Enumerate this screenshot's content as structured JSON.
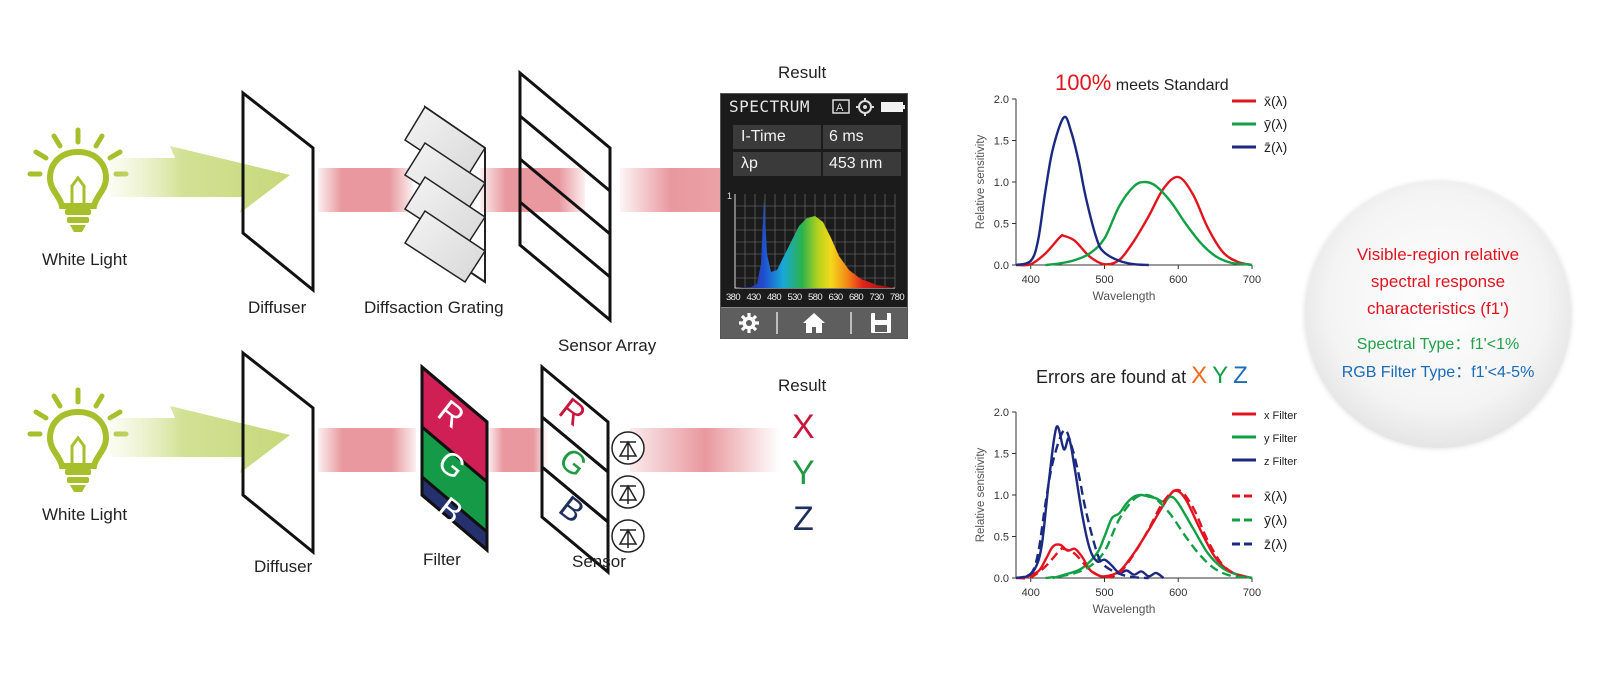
{
  "labels": {
    "white_light_top": "White Light",
    "white_light_bottom": "White Light",
    "diffuser_top": "Diffuser",
    "diffraction_grating": "Diffsaction Grating",
    "sensor_array": "Sensor Array",
    "diffuser_bottom": "Diffuser",
    "filter": "Filter",
    "sensor": "Sensor",
    "result_top": "Result",
    "result_bottom": "Result"
  },
  "filter_letters": [
    "R",
    "G",
    "B"
  ],
  "sensor_letters": [
    "R",
    "G",
    "B"
  ],
  "result_xyz": [
    "X",
    "Y",
    "Z"
  ],
  "device": {
    "title": "SPECTRUM",
    "itime_label": "I-Time",
    "itime_value": "6 ms",
    "lp_label": "λp",
    "lp_value": "453 nm",
    "spectrum_axis_top": "1",
    "spectrum_ticks": [
      "380",
      "430",
      "480",
      "530",
      "580",
      "630",
      "680",
      "730",
      "780"
    ],
    "icons": [
      "gear-icon",
      "home-icon",
      "save-icon"
    ]
  },
  "top_chart": {
    "title_pct": "100%",
    "title_rest": "meets Standard"
  },
  "bottom_chart": {
    "title_prefix": "Errors are found at",
    "title_x": "X",
    "title_y": "Y",
    "title_z": "Z"
  },
  "circle": {
    "line1": "Visible-region relative",
    "line2": "spectral response",
    "line3": "characteristics (f1')",
    "spectral": "Spectral Type：f1'<1%",
    "rgb": "RGB Filter Type：f1'<4-5%"
  },
  "colors": {
    "red": "#e1141f",
    "green": "#12a045",
    "blue": "#1b2a80",
    "result_x": "#c8163f",
    "result_y": "#229944",
    "result_z": "#1f2f5e",
    "bulb": "#a8bf2c",
    "beam": "#e8989e",
    "err_x": "#f06a1e",
    "spectral_text": "#21a24b",
    "rgb_text": "#1a6bb8"
  },
  "chart_data": [
    {
      "type": "line",
      "title": "100% meets Standard",
      "xlabel": "Wavelength",
      "ylabel": "Relative sensitivity",
      "xlim": [
        380,
        700
      ],
      "ylim": [
        0,
        2.0
      ],
      "xticks": [
        400,
        500,
        600,
        700
      ],
      "yticks": [
        0.0,
        0.5,
        1.0,
        1.5,
        2.0
      ],
      "legend": "top-right",
      "series": [
        {
          "name": "x̄(λ)",
          "style": "solid",
          "color": "#e1141f",
          "x": [
            380,
            400,
            420,
            440,
            445,
            460,
            480,
            500,
            520,
            540,
            560,
            580,
            600,
            620,
            640,
            660,
            680,
            700
          ],
          "y": [
            0.0,
            0.01,
            0.14,
            0.34,
            0.35,
            0.29,
            0.1,
            0.01,
            0.06,
            0.29,
            0.59,
            0.92,
            1.06,
            0.85,
            0.45,
            0.16,
            0.04,
            0.0
          ]
        },
        {
          "name": "ȳ(λ)",
          "style": "solid",
          "color": "#12a045",
          "x": [
            420,
            440,
            460,
            480,
            500,
            520,
            540,
            555,
            570,
            590,
            610,
            630,
            650,
            670,
            690,
            700
          ],
          "y": [
            0.0,
            0.02,
            0.06,
            0.14,
            0.32,
            0.71,
            0.95,
            1.0,
            0.95,
            0.76,
            0.5,
            0.27,
            0.11,
            0.03,
            0.01,
            0.0
          ]
        },
        {
          "name": "z̄(λ)",
          "style": "solid",
          "color": "#1b2a80",
          "x": [
            380,
            400,
            410,
            420,
            430,
            445,
            455,
            465,
            475,
            490,
            500,
            520,
            540,
            560
          ],
          "y": [
            0.0,
            0.05,
            0.3,
            0.9,
            1.4,
            1.78,
            1.6,
            1.25,
            0.8,
            0.3,
            0.15,
            0.05,
            0.01,
            0.0
          ]
        }
      ]
    },
    {
      "type": "line",
      "title": "Errors are found at X Y Z",
      "xlabel": "Wavelength",
      "ylabel": "Relative sensitivity",
      "xlim": [
        380,
        700
      ],
      "ylim": [
        0,
        2.0
      ],
      "xticks": [
        400,
        500,
        600,
        700
      ],
      "yticks": [
        0.0,
        0.5,
        1.0,
        1.5,
        2.0
      ],
      "legend": "top-right",
      "series": [
        {
          "name": "x Filter",
          "style": "solid",
          "color": "#e1141f",
          "x": [
            390,
            410,
            420,
            430,
            440,
            450,
            460,
            470,
            480,
            490,
            500,
            520,
            540,
            560,
            580,
            595,
            610,
            630,
            650,
            670,
            690,
            700
          ],
          "y": [
            0.0,
            0.08,
            0.22,
            0.38,
            0.4,
            0.33,
            0.35,
            0.25,
            0.1,
            0.04,
            0.02,
            0.08,
            0.3,
            0.58,
            0.88,
            1.05,
            0.95,
            0.58,
            0.25,
            0.08,
            0.02,
            0.0
          ]
        },
        {
          "name": "y Filter",
          "style": "solid",
          "color": "#12a045",
          "x": [
            430,
            450,
            470,
            490,
            500,
            510,
            520,
            530,
            540,
            550,
            560,
            570,
            580,
            590,
            600,
            620,
            640,
            660,
            680,
            700
          ],
          "y": [
            0.0,
            0.05,
            0.12,
            0.3,
            0.5,
            0.72,
            0.78,
            0.9,
            0.98,
            1.0,
            0.98,
            0.96,
            0.92,
            0.98,
            0.9,
            0.6,
            0.3,
            0.12,
            0.04,
            0.0
          ]
        },
        {
          "name": "z Filter",
          "style": "solid",
          "color": "#1b2a80",
          "x": [
            390,
            405,
            415,
            425,
            435,
            445,
            452,
            460,
            470,
            480,
            490,
            500,
            510,
            520,
            530,
            540,
            550,
            560,
            570,
            580
          ],
          "y": [
            0.0,
            0.1,
            0.4,
            1.2,
            1.82,
            1.55,
            1.68,
            1.3,
            0.75,
            0.35,
            0.2,
            0.22,
            0.15,
            0.06,
            0.09,
            0.04,
            0.08,
            0.02,
            0.06,
            0.0
          ]
        },
        {
          "name": "x̄(λ)",
          "style": "dashed",
          "color": "#e1141f",
          "x": [
            380,
            400,
            420,
            440,
            445,
            460,
            480,
            500,
            520,
            540,
            560,
            580,
            600,
            620,
            640,
            660,
            680,
            700
          ],
          "y": [
            0.0,
            0.01,
            0.14,
            0.34,
            0.35,
            0.29,
            0.1,
            0.01,
            0.06,
            0.29,
            0.59,
            0.92,
            1.06,
            0.85,
            0.45,
            0.16,
            0.04,
            0.0
          ]
        },
        {
          "name": "ȳ(λ)",
          "style": "dashed",
          "color": "#12a045",
          "x": [
            420,
            440,
            460,
            480,
            500,
            520,
            540,
            555,
            570,
            590,
            610,
            630,
            650,
            670,
            690,
            700
          ],
          "y": [
            0.0,
            0.02,
            0.06,
            0.14,
            0.32,
            0.71,
            0.95,
            1.0,
            0.95,
            0.76,
            0.5,
            0.27,
            0.11,
            0.03,
            0.01,
            0.0
          ]
        },
        {
          "name": "z̄(λ)",
          "style": "dashed",
          "color": "#1b2a80",
          "x": [
            380,
            400,
            410,
            420,
            430,
            445,
            455,
            465,
            475,
            490,
            500,
            520,
            540,
            560
          ],
          "y": [
            0.0,
            0.05,
            0.3,
            0.9,
            1.4,
            1.78,
            1.6,
            1.25,
            0.8,
            0.3,
            0.15,
            0.05,
            0.01,
            0.0
          ]
        }
      ]
    }
  ]
}
